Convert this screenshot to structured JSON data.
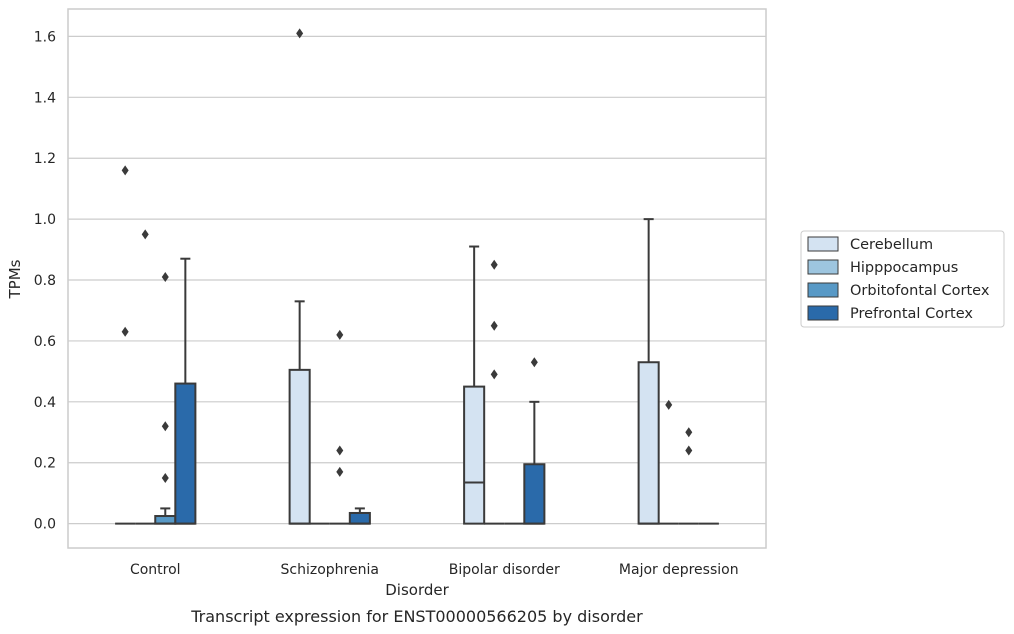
{
  "chart_data": {
    "type": "box",
    "xlabel": "Disorder",
    "ylabel": "TPMs",
    "caption": "Transcript expression for ENST00000566205 by disorder",
    "ylim": [
      -0.08,
      1.69
    ],
    "yticks": [
      "0.0",
      "0.2",
      "0.4",
      "0.6",
      "0.8",
      "1.0",
      "1.2",
      "1.4",
      "1.6"
    ],
    "yticks_values": [
      0.0,
      0.2,
      0.4,
      0.6,
      0.8,
      1.0,
      1.2,
      1.4,
      1.6
    ],
    "grid": "horizontal",
    "legend_position": "right",
    "categories": [
      "Control",
      "Schizophrenia",
      "Bipolar disorder",
      "Major depression"
    ],
    "series": [
      {
        "name": "Cerebellum",
        "color": "#d4e3f2",
        "boxes": [
          {
            "q1": 0,
            "median": 0,
            "q3": 0,
            "whislo": 0,
            "whishi": 0,
            "fliers": [
              0.63,
              1.16
            ]
          },
          {
            "q1": 0,
            "median": 0,
            "q3": 0.505,
            "whislo": 0,
            "whishi": 0.73,
            "fliers": [
              1.61
            ]
          },
          {
            "q1": 0,
            "median": 0.135,
            "q3": 0.45,
            "whislo": 0,
            "whishi": 0.91,
            "fliers": []
          },
          {
            "q1": 0,
            "median": 0,
            "q3": 0.53,
            "whislo": 0,
            "whishi": 1.0,
            "fliers": []
          }
        ]
      },
      {
        "name": "Hipppocampus",
        "color": "#9dc5df",
        "boxes": [
          {
            "q1": 0,
            "median": 0,
            "q3": 0,
            "whislo": 0,
            "whishi": 0,
            "fliers": [
              0.95
            ]
          },
          {
            "q1": 0,
            "median": 0,
            "q3": 0,
            "whislo": 0,
            "whishi": 0,
            "fliers": []
          },
          {
            "q1": 0,
            "median": 0,
            "q3": 0,
            "whislo": 0,
            "whishi": 0,
            "fliers": [
              0.49,
              0.65,
              0.85
            ]
          },
          {
            "q1": 0,
            "median": 0,
            "q3": 0,
            "whislo": 0,
            "whishi": 0,
            "fliers": [
              0.39
            ]
          }
        ]
      },
      {
        "name": "Orbitofontal Cortex",
        "color": "#5899c6",
        "boxes": [
          {
            "q1": 0,
            "median": 0,
            "q3": 0.025,
            "whislo": 0,
            "whishi": 0.05,
            "fliers": [
              0.15,
              0.32,
              0.81
            ]
          },
          {
            "q1": 0,
            "median": 0,
            "q3": 0,
            "whislo": 0,
            "whishi": 0,
            "fliers": [
              0.17,
              0.24,
              0.62
            ]
          },
          {
            "q1": 0,
            "median": 0,
            "q3": 0,
            "whislo": 0,
            "whishi": 0,
            "fliers": []
          },
          {
            "q1": 0,
            "median": 0,
            "q3": 0,
            "whislo": 0,
            "whishi": 0,
            "fliers": [
              0.24,
              0.3
            ]
          }
        ]
      },
      {
        "name": "Prefrontal Cortex",
        "color": "#2a6aaa",
        "boxes": [
          {
            "q1": 0,
            "median": 0,
            "q3": 0.46,
            "whislo": 0,
            "whishi": 0.87,
            "fliers": []
          },
          {
            "q1": 0,
            "median": 0,
            "q3": 0.035,
            "whislo": 0,
            "whishi": 0.05,
            "fliers": []
          },
          {
            "q1": 0,
            "median": 0,
            "q3": 0.195,
            "whislo": 0,
            "whishi": 0.4,
            "fliers": [
              0.53
            ]
          },
          {
            "q1": 0,
            "median": 0,
            "q3": 0,
            "whislo": 0,
            "whishi": 0,
            "fliers": []
          }
        ]
      }
    ]
  }
}
